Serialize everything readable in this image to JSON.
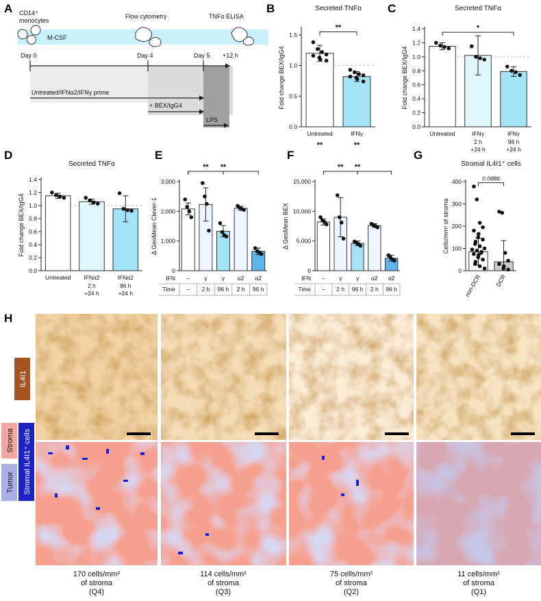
{
  "panel_a": {
    "letter": "A",
    "monocytes_line1": "CD14⁺",
    "monocytes_line2": "monocytes",
    "mcsf": "M-CSF",
    "flow": "Flow cytometry",
    "elisa": "TNFα ELISA",
    "day0": "Day 0",
    "day4": "Day 4",
    "day5": "Day 5",
    "plus12": "+12 h",
    "prime": "Untreated/IFNα2/IFNγ prime",
    "bex": "+ BEX/IgG4",
    "lps": "LPS"
  },
  "panel_h": {
    "letter": "H",
    "il4i1_label": "IL4I1",
    "stroma_label": "Stroma",
    "tumor_label": "Tumor",
    "stromal_label": "Stromal IL4I1⁺ cells",
    "captions": [
      {
        "line1": "170 cells/mm²",
        "line2": "of stroma",
        "line3": "(Q4)"
      },
      {
        "line1": "114 cells/mm²",
        "line2": "of stroma",
        "line3": "(Q3)"
      },
      {
        "line1": "75 cells/mm²",
        "line2": "of stroma",
        "line3": "(Q2)"
      },
      {
        "line1": "11 cells/mm²",
        "line2": "of stroma",
        "line3": "(Q1)"
      }
    ]
  },
  "colors": {
    "untreated": "#ffffff",
    "ifn_light": "#dff6fb",
    "ifn_mid": "#a4e3f5",
    "ifn_dark": "#5db7ea",
    "alpha_short": "#eef5ff",
    "dcr": "#cccccc"
  },
  "chart_data": [
    {
      "id": "B",
      "type": "bar",
      "title": "Secreted TNFα",
      "ylabel": "Fold change BEX/IgG4",
      "categories": [
        "Untreated",
        "IFNγ"
      ],
      "below": [
        "**",
        "**"
      ],
      "values": [
        1.2,
        0.82
      ],
      "errors": [
        0.13,
        0.08
      ],
      "points": [
        [
          1.38,
          1.27,
          1.22,
          1.18,
          1.16,
          1.13,
          1.1,
          1.08
        ],
        [
          0.93,
          0.89,
          0.86,
          0.84,
          0.82,
          0.8,
          0.78,
          0.74
        ]
      ],
      "fills": [
        "#ffffff",
        "#a4e3f5"
      ],
      "ylim": [
        0,
        1.6
      ],
      "yticks": [
        0.0,
        0.5,
        1.0,
        1.5
      ],
      "dashed": 1.0,
      "brackets": [
        {
          "from": 0,
          "to": 1,
          "label": "**",
          "level": 1.55
        }
      ]
    },
    {
      "id": "C",
      "type": "bar",
      "title": "Secreted TNFα",
      "ylabel": "Fold change BEX/IgG4",
      "categories": [
        "Untreated",
        "IFNγ",
        "IFNγ"
      ],
      "sub1": [
        "",
        "2 h",
        "96 h"
      ],
      "sub2": [
        "",
        "+24 h",
        "+24 h"
      ],
      "values": [
        1.15,
        1.02,
        0.79
      ],
      "errors": [
        0.05,
        0.28,
        0.07
      ],
      "points": [
        [
          1.2,
          1.16,
          1.14,
          1.12
        ],
        [
          1.15,
          1.0,
          0.98,
          0.96
        ],
        [
          0.86,
          0.8,
          0.78,
          0.74
        ]
      ],
      "fills": [
        "#ffffff",
        "#dff6fb",
        "#a4e3f5"
      ],
      "ylim": [
        0,
        1.4
      ],
      "yticks": [
        0.0,
        0.2,
        0.4,
        0.6,
        0.8,
        1.0,
        1.2,
        1.4
      ],
      "dashed": 1.0,
      "brackets": [
        {
          "from": 0,
          "to": 2,
          "label": "*",
          "level": 1.35
        }
      ]
    },
    {
      "id": "D",
      "type": "bar",
      "title": "Secreted TNFα",
      "ylabel": "Fold change BEX/IgG4",
      "categories": [
        "Untreated",
        "IFNα2",
        "IFNα2"
      ],
      "sub1": [
        "",
        "2 h",
        "96 h"
      ],
      "sub2": [
        "",
        "+24 h",
        "+24 h"
      ],
      "values": [
        1.15,
        1.06,
        0.95
      ],
      "errors": [
        0.04,
        0.04,
        0.2
      ],
      "points": [
        [
          1.2,
          1.16,
          1.14,
          1.12
        ],
        [
          1.12,
          1.08,
          1.05,
          1.03
        ],
        [
          1.19,
          0.95,
          0.93,
          0.92
        ]
      ],
      "fills": [
        "#ffffff",
        "#dff6fb",
        "#a4e3f5"
      ],
      "ylim": [
        0,
        1.4
      ],
      "yticks": [
        0.0,
        0.2,
        0.4,
        0.6,
        0.8,
        1.0,
        1.2,
        1.4
      ],
      "dashed": 1.0,
      "brackets": []
    },
    {
      "id": "E",
      "type": "bar",
      "title": "",
      "ylabel": "Δ GeoMean Clever-1",
      "categories": [
        "–",
        "γ",
        "γ",
        "α2",
        "α2"
      ],
      "row_ifn_label": "IFN",
      "row_time_label": "Time",
      "times": [
        "–",
        "2 h",
        "96 h",
        "2 h",
        "96 h"
      ],
      "values": [
        2080,
        2230,
        1330,
        2100,
        650
      ],
      "errors": [
        200,
        560,
        190,
        70,
        110
      ],
      "points": [
        [
          2400,
          2150,
          2000,
          1800
        ],
        [
          2950,
          2500,
          2250,
          1350
        ],
        [
          1600,
          1300,
          1200,
          1150
        ],
        [
          2180,
          2120,
          2080,
          2050
        ],
        [
          760,
          650,
          620,
          560
        ]
      ],
      "fills": [
        "#ffffff",
        "#eef5ff",
        "#a4e3f5",
        "#eef5ff",
        "#5db7ea"
      ],
      "ylim": [
        0,
        3000
      ],
      "yticks": [
        0,
        1000,
        2000,
        3000
      ],
      "yticklabels": [
        "0",
        "1,000",
        "2,000",
        "3,000"
      ],
      "brackets": [
        {
          "from": 0,
          "to": 2,
          "label": "**",
          "level": 3400
        },
        {
          "from": 0,
          "to": 4,
          "label": "**",
          "level": 3950
        }
      ]
    },
    {
      "id": "F",
      "type": "bar",
      "title": "",
      "ylabel": "Δ GeoMean BEX",
      "categories": [
        "–",
        "γ",
        "γ",
        "α2",
        "α2"
      ],
      "row_ifn_label": "IFN",
      "row_time_label": "Time",
      "times": [
        "–",
        "2 h",
        "96 h",
        "2 h",
        "96 h"
      ],
      "values": [
        8200,
        9000,
        4600,
        7600,
        2100
      ],
      "errors": [
        500,
        3300,
        400,
        300,
        500
      ],
      "points": [
        [
          9000,
          8500,
          8200,
          7800
        ],
        [
          12700,
          9000,
          8100,
          5400
        ],
        [
          4900,
          4700,
          4500,
          4200
        ],
        [
          7900,
          7700,
          7500,
          7300
        ],
        [
          2600,
          2200,
          1900,
          1700
        ]
      ],
      "fills": [
        "#ffffff",
        "#eef5ff",
        "#a4e3f5",
        "#eef5ff",
        "#5db7ea"
      ],
      "ylim": [
        0,
        15000
      ],
      "yticks": [
        0,
        5000,
        10000,
        15000
      ],
      "yticklabels": [
        "0",
        "5,000",
        "10,000",
        "15,000"
      ],
      "brackets": [
        {
          "from": 0,
          "to": 2,
          "label": "**",
          "level": 16900
        },
        {
          "from": 0,
          "to": 4,
          "label": "**",
          "level": 19600
        }
      ]
    },
    {
      "id": "G",
      "type": "bar",
      "title": "Stromal IL4I1⁺ cells",
      "ylabel": "Cells/mm² of stroma",
      "categories": [
        "non-DCR",
        "DCR"
      ],
      "rotated": true,
      "values": [
        85,
        40
      ],
      "errors": [
        60,
        95
      ],
      "points": [
        [
          378,
          320,
          215,
          195,
          180,
          165,
          150,
          140,
          130,
          120,
          110,
          100,
          95,
          90,
          85,
          80,
          75,
          70,
          60,
          50,
          40,
          30,
          20,
          10
        ],
        [
          265,
          260,
          80,
          45,
          30,
          20,
          10,
          5
        ]
      ],
      "fills": [
        "#ffffff",
        "#cccccc"
      ],
      "ylim": [
        0,
        400
      ],
      "yticks": [
        0,
        100,
        200,
        300,
        400
      ],
      "brackets": [
        {
          "from": 0,
          "to": 1,
          "label": "0.0886",
          "level": 395,
          "italic": true
        }
      ]
    }
  ]
}
